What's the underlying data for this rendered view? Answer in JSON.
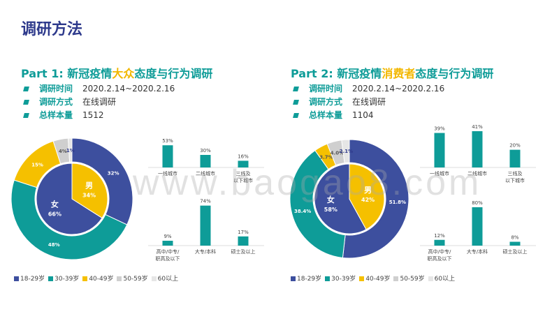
{
  "page_title": "调研方法",
  "watermark": "www.baogao8.com",
  "parts": [
    {
      "title_pre": "Part 1: 新冠疫情",
      "title_hl": "大众",
      "title_post": "态度与行为调研",
      "info": [
        {
          "label": "调研时间",
          "value": "2020.2.14~2020.2.16"
        },
        {
          "label": "调研方式",
          "value": "在线调研"
        },
        {
          "label": "总样本量",
          "value": "1512"
        }
      ]
    },
    {
      "title_pre": "Part 2: 新冠疫情",
      "title_hl": "消费者",
      "title_post": "态度与行为调研",
      "info": [
        {
          "label": "调研时间",
          "value": "2020.2.14~2020.2.16"
        },
        {
          "label": "调研方式",
          "value": "在线调研"
        },
        {
          "label": "总样本量",
          "value": "1104"
        }
      ]
    }
  ],
  "colors": {
    "navy": "#3d4f9e",
    "teal": "#0e9c98",
    "yellow": "#f5c000",
    "grey": "#cfcfcf",
    "light": "#e6e6e6"
  },
  "chart_data": [
    {
      "type": "pie",
      "id": "p1-age",
      "categories": [
        "18-29岁",
        "30-39岁",
        "40-49岁",
        "50-59岁",
        "60以上"
      ],
      "values": [
        32,
        48,
        15,
        4,
        1
      ],
      "labels": [
        "32%",
        "48%",
        "15%",
        "4%",
        "1%"
      ]
    },
    {
      "type": "pie",
      "id": "p1-gender",
      "categories": [
        "女",
        "男"
      ],
      "values": [
        66,
        34
      ],
      "labels": [
        "66%",
        "34%"
      ]
    },
    {
      "type": "bar",
      "id": "p1-city",
      "categories": [
        "一线城市",
        "二线城市",
        "三线及以下城市"
      ],
      "values": [
        53,
        30,
        16
      ],
      "labels": [
        "53%",
        "30%",
        "16%"
      ]
    },
    {
      "type": "bar",
      "id": "p1-edu",
      "categories": [
        "高中/中专/职高及以下",
        "大专/本科",
        "硕士及以上"
      ],
      "values": [
        9,
        74,
        17
      ],
      "labels": [
        "9%",
        "74%",
        "17%"
      ]
    },
    {
      "type": "pie",
      "id": "p2-age",
      "categories": [
        "18-29岁",
        "30-39岁",
        "40-49岁",
        "50-59岁",
        "60以上"
      ],
      "values": [
        51.8,
        38.4,
        3.7,
        4.0,
        2.1
      ],
      "labels": [
        "51.8%",
        "38.4%",
        "3.7%",
        "4.0%",
        "2.1%"
      ]
    },
    {
      "type": "pie",
      "id": "p2-gender",
      "categories": [
        "女",
        "男"
      ],
      "values": [
        58,
        42
      ],
      "labels": [
        "58%",
        "42%"
      ]
    },
    {
      "type": "bar",
      "id": "p2-city",
      "categories": [
        "一线城市",
        "二线城市",
        "三线及以下城市"
      ],
      "values": [
        39,
        41,
        20
      ],
      "labels": [
        "39%",
        "41%",
        "20%"
      ]
    },
    {
      "type": "bar",
      "id": "p2-edu",
      "categories": [
        "高中/中专/职高及以下",
        "大专/本科",
        "硕士及以上"
      ],
      "values": [
        12,
        80,
        8
      ],
      "labels": [
        "12%",
        "80%",
        "8%"
      ]
    }
  ]
}
